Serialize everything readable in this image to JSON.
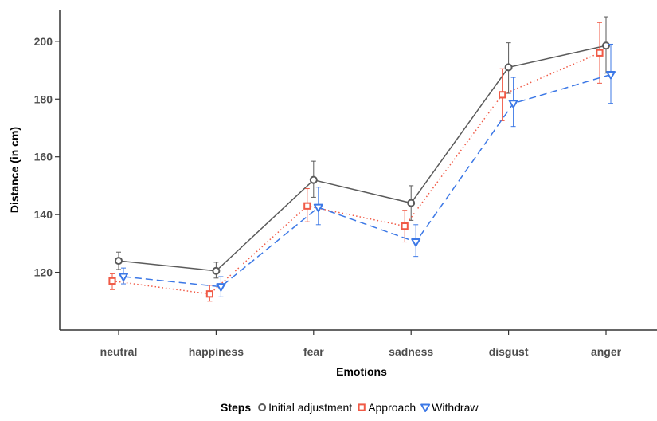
{
  "chart_data": {
    "type": "line",
    "xlabel": "Emotions",
    "ylabel": "Distance (in cm)",
    "categories": [
      "neutral",
      "happiness",
      "fear",
      "sadness",
      "disgust",
      "anger"
    ],
    "ylim": [
      100,
      211
    ],
    "yticks": [
      120,
      140,
      160,
      180,
      200
    ],
    "grid": false,
    "legend": {
      "position": "bottom",
      "title": "Steps"
    },
    "series": [
      {
        "name": "Initial adjustment",
        "values": [
          124,
          120.5,
          152,
          144,
          191,
          198.5
        ],
        "error_low": [
          121,
          118,
          146,
          138,
          182,
          189
        ],
        "error_high": [
          127,
          123.5,
          158.5,
          150,
          199.5,
          208.5
        ],
        "color": "#5a5a5a",
        "line_style": "solid",
        "marker": "circle"
      },
      {
        "name": "Approach",
        "values": [
          117,
          112.5,
          143,
          136,
          181.5,
          196
        ],
        "error_low": [
          114,
          110,
          137.5,
          130.5,
          172.5,
          185.5
        ],
        "error_high": [
          119.5,
          115.5,
          149,
          141.5,
          190.5,
          206.5
        ],
        "color": "#f05a46",
        "line_style": "dotted",
        "marker": "square"
      },
      {
        "name": "Withdraw",
        "values": [
          118.5,
          115,
          142.5,
          130.5,
          178.5,
          188.5
        ],
        "error_low": [
          116,
          111.5,
          136.5,
          125.5,
          170.5,
          178.5
        ],
        "error_high": [
          121.5,
          118.5,
          149.5,
          136.5,
          187.5,
          199
        ],
        "color": "#3c78e6",
        "line_style": "dashed",
        "marker": "triangle-down"
      }
    ]
  }
}
